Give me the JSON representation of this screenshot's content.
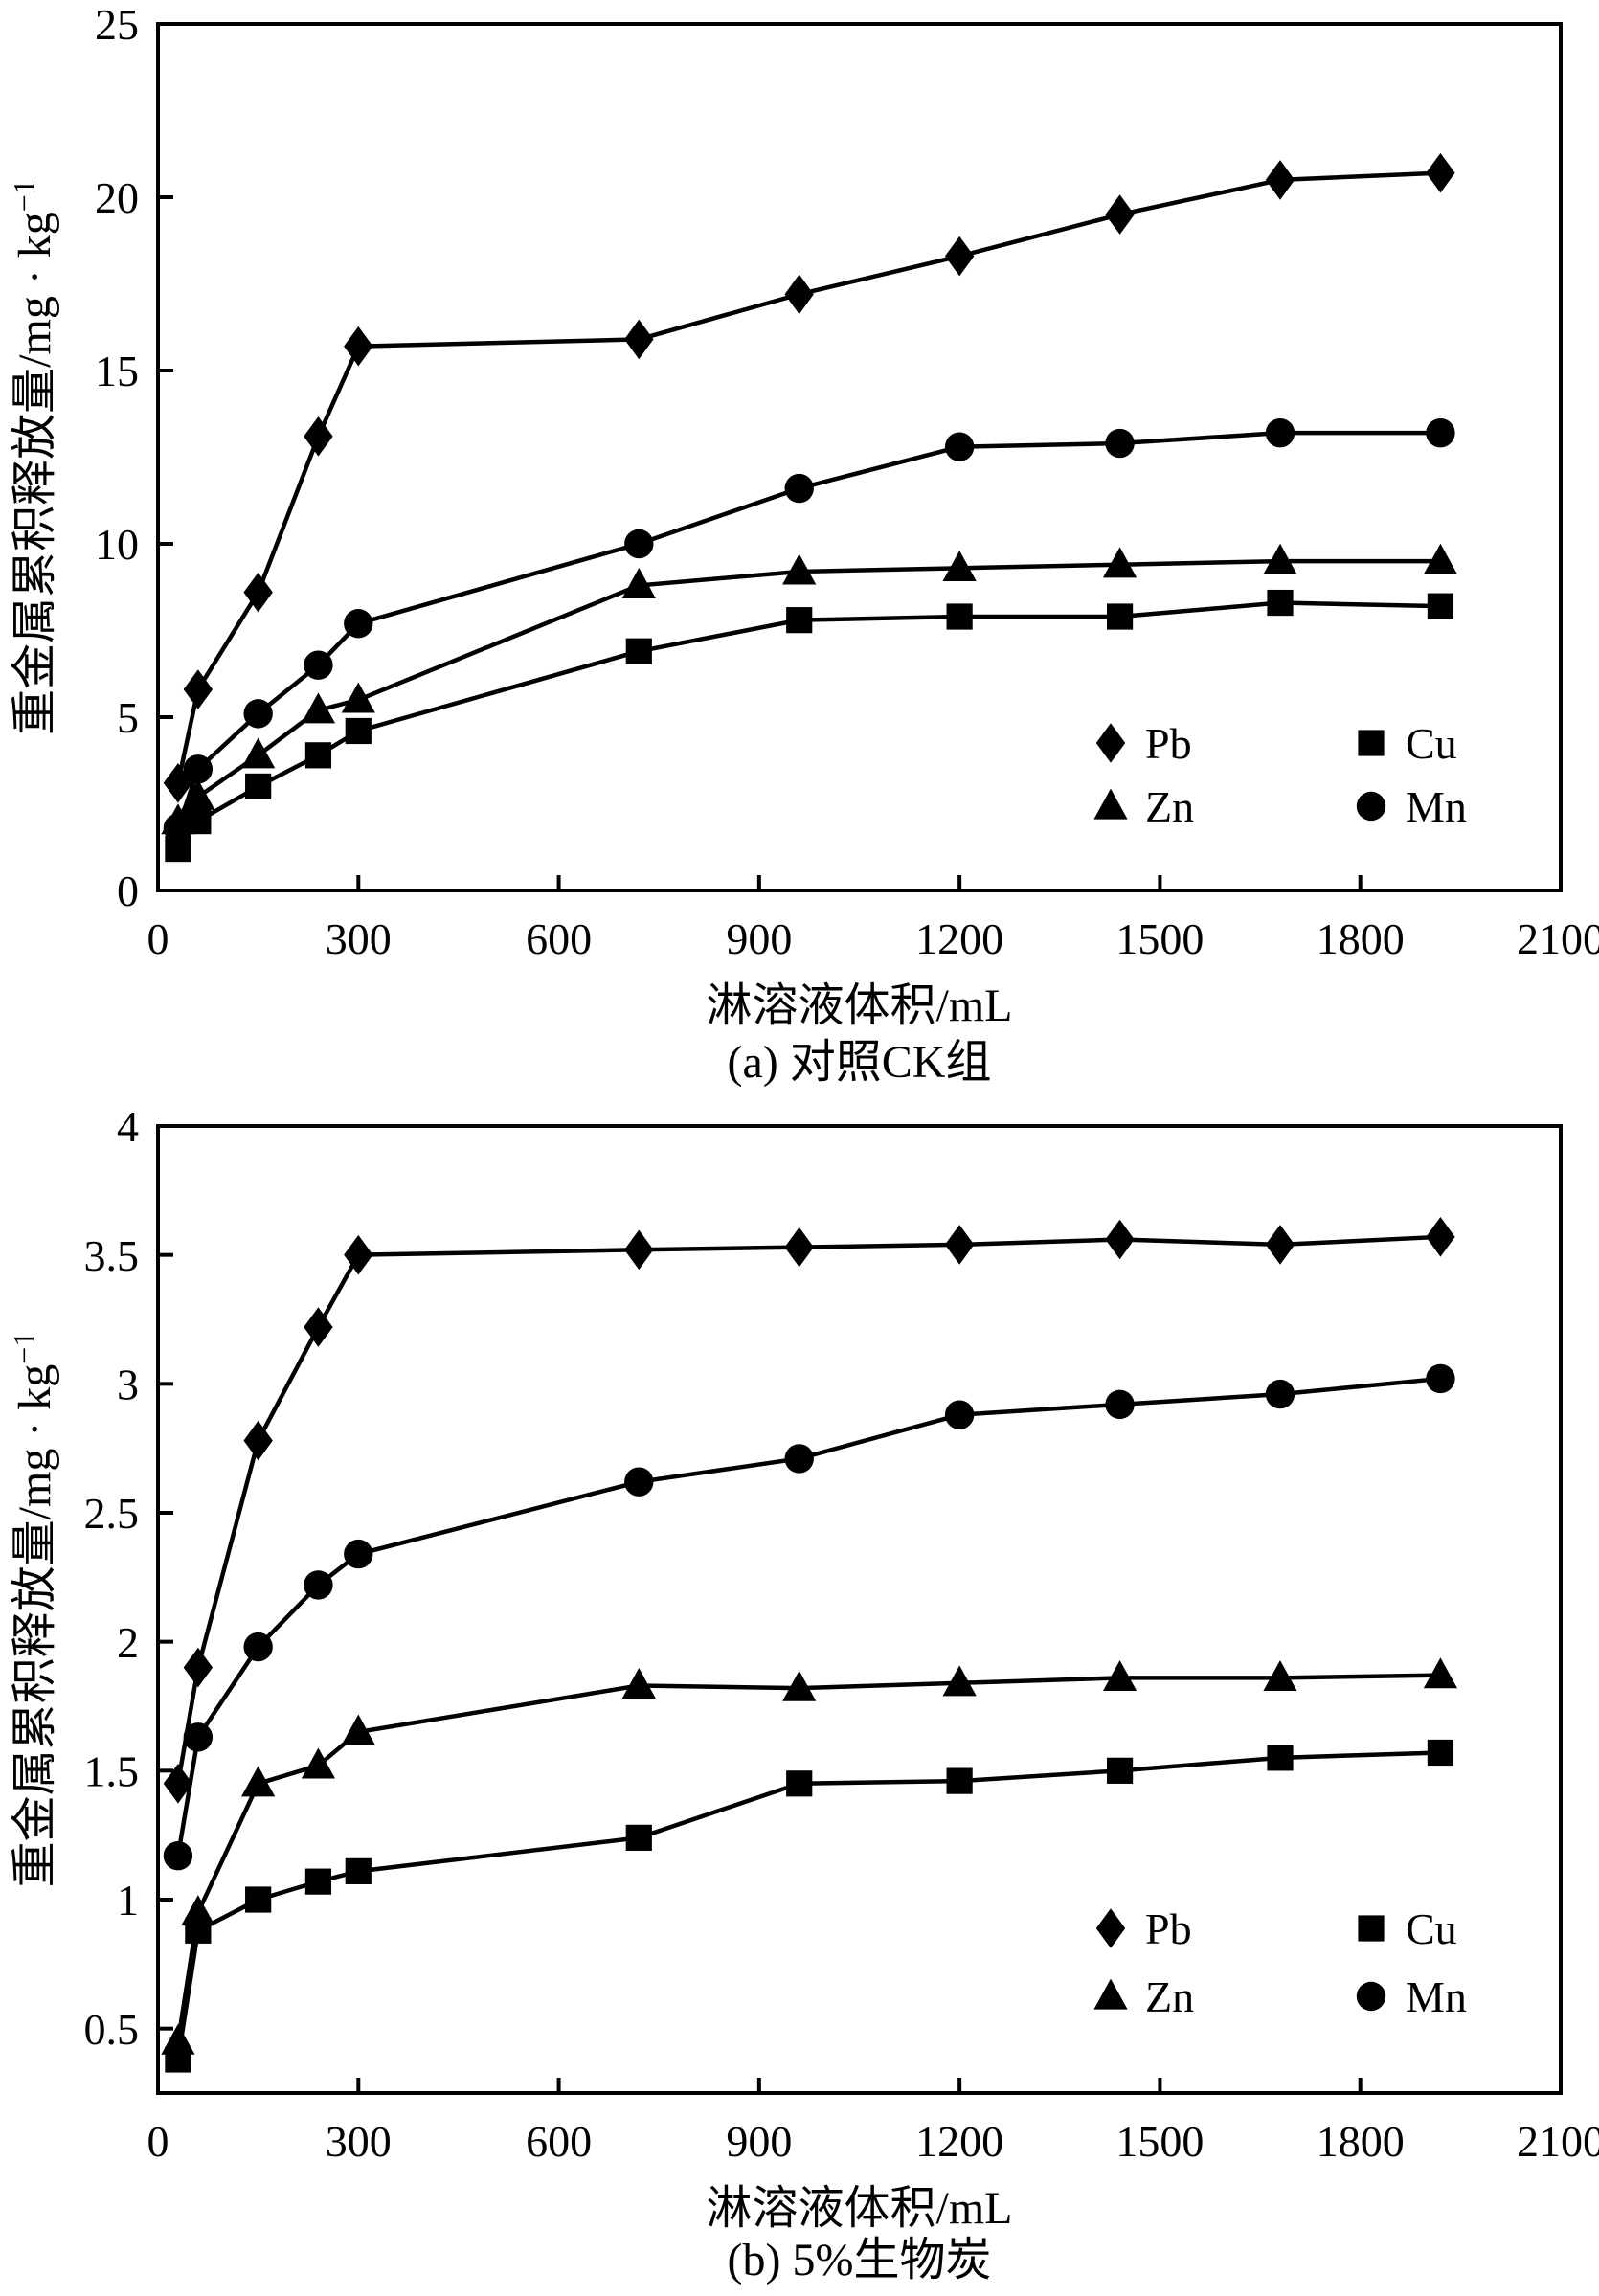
{
  "colors": {
    "background": "#ffffff",
    "foreground": "#000000"
  },
  "chart_data": [
    {
      "id": "a",
      "type": "line",
      "caption": "(a) 对照CK组",
      "xlabel": "淋溶液体积/mL",
      "ylabel": "重金属累积释放量/mg · kg",
      "ylabel_sup": "−1",
      "xlim": [
        0,
        2100
      ],
      "xticks": [
        0,
        300,
        600,
        900,
        1200,
        1500,
        1800,
        2100
      ],
      "ylim": [
        0,
        25
      ],
      "yticks": [
        0,
        5,
        10,
        15,
        20,
        25
      ],
      "grid": false,
      "legend": {
        "position": "lower-right",
        "columns": [
          [
            "Pb",
            "Zn"
          ],
          [
            "Cu",
            "Mn"
          ]
        ]
      },
      "x": [
        30,
        60,
        150,
        240,
        300,
        720,
        960,
        1200,
        1440,
        1680,
        1920
      ],
      "series": [
        {
          "name": "Pb",
          "marker": "diamond",
          "values": [
            3.1,
            5.8,
            8.6,
            13.1,
            15.7,
            15.9,
            17.2,
            18.3,
            19.5,
            20.5,
            20.7
          ]
        },
        {
          "name": "Cu",
          "marker": "square",
          "values": [
            1.2,
            2.0,
            3.0,
            3.9,
            4.6,
            6.9,
            7.8,
            7.9,
            7.9,
            8.3,
            8.2
          ]
        },
        {
          "name": "Zn",
          "marker": "triangle",
          "values": [
            2.0,
            2.7,
            3.9,
            5.2,
            5.5,
            8.8,
            9.2,
            9.3,
            9.4,
            9.5,
            9.5
          ]
        },
        {
          "name": "Mn",
          "marker": "circle",
          "values": [
            1.8,
            3.5,
            5.1,
            6.5,
            7.7,
            10.0,
            11.6,
            12.8,
            12.9,
            13.2,
            13.2
          ]
        }
      ],
      "color": "#000000"
    },
    {
      "id": "b",
      "type": "line",
      "caption": "(b) 5%生物炭",
      "xlabel": "淋溶液体积/mL",
      "ylabel": "重金属累积释放量/mg · kg",
      "ylabel_sup": "−1",
      "xlim": [
        0,
        2100
      ],
      "xticks": [
        0,
        300,
        600,
        900,
        1200,
        1500,
        1800,
        2100
      ],
      "ylim": [
        0.25,
        4
      ],
      "yticks": [
        0.5,
        1,
        1.5,
        2,
        2.5,
        3,
        3.5,
        4
      ],
      "grid": false,
      "legend": {
        "position": "lower-right",
        "columns": [
          [
            "Pb",
            "Zn"
          ],
          [
            "Cu",
            "Mn"
          ]
        ]
      },
      "x": [
        30,
        60,
        150,
        240,
        300,
        720,
        960,
        1200,
        1440,
        1680,
        1920
      ],
      "series": [
        {
          "name": "Pb",
          "marker": "diamond",
          "values": [
            1.45,
            1.9,
            2.78,
            3.22,
            3.5,
            3.52,
            3.53,
            3.54,
            3.56,
            3.54,
            3.57
          ]
        },
        {
          "name": "Cu",
          "marker": "square",
          "values": [
            0.38,
            0.88,
            1.0,
            1.07,
            1.11,
            1.24,
            1.45,
            1.46,
            1.5,
            1.55,
            1.57
          ]
        },
        {
          "name": "Zn",
          "marker": "triangle",
          "values": [
            0.45,
            0.95,
            1.45,
            1.52,
            1.65,
            1.83,
            1.82,
            1.84,
            1.86,
            1.86,
            1.87
          ]
        },
        {
          "name": "Mn",
          "marker": "circle",
          "values": [
            1.17,
            1.63,
            1.98,
            2.22,
            2.34,
            2.62,
            2.71,
            2.88,
            2.92,
            2.96,
            3.02
          ]
        }
      ],
      "color": "#000000"
    }
  ]
}
